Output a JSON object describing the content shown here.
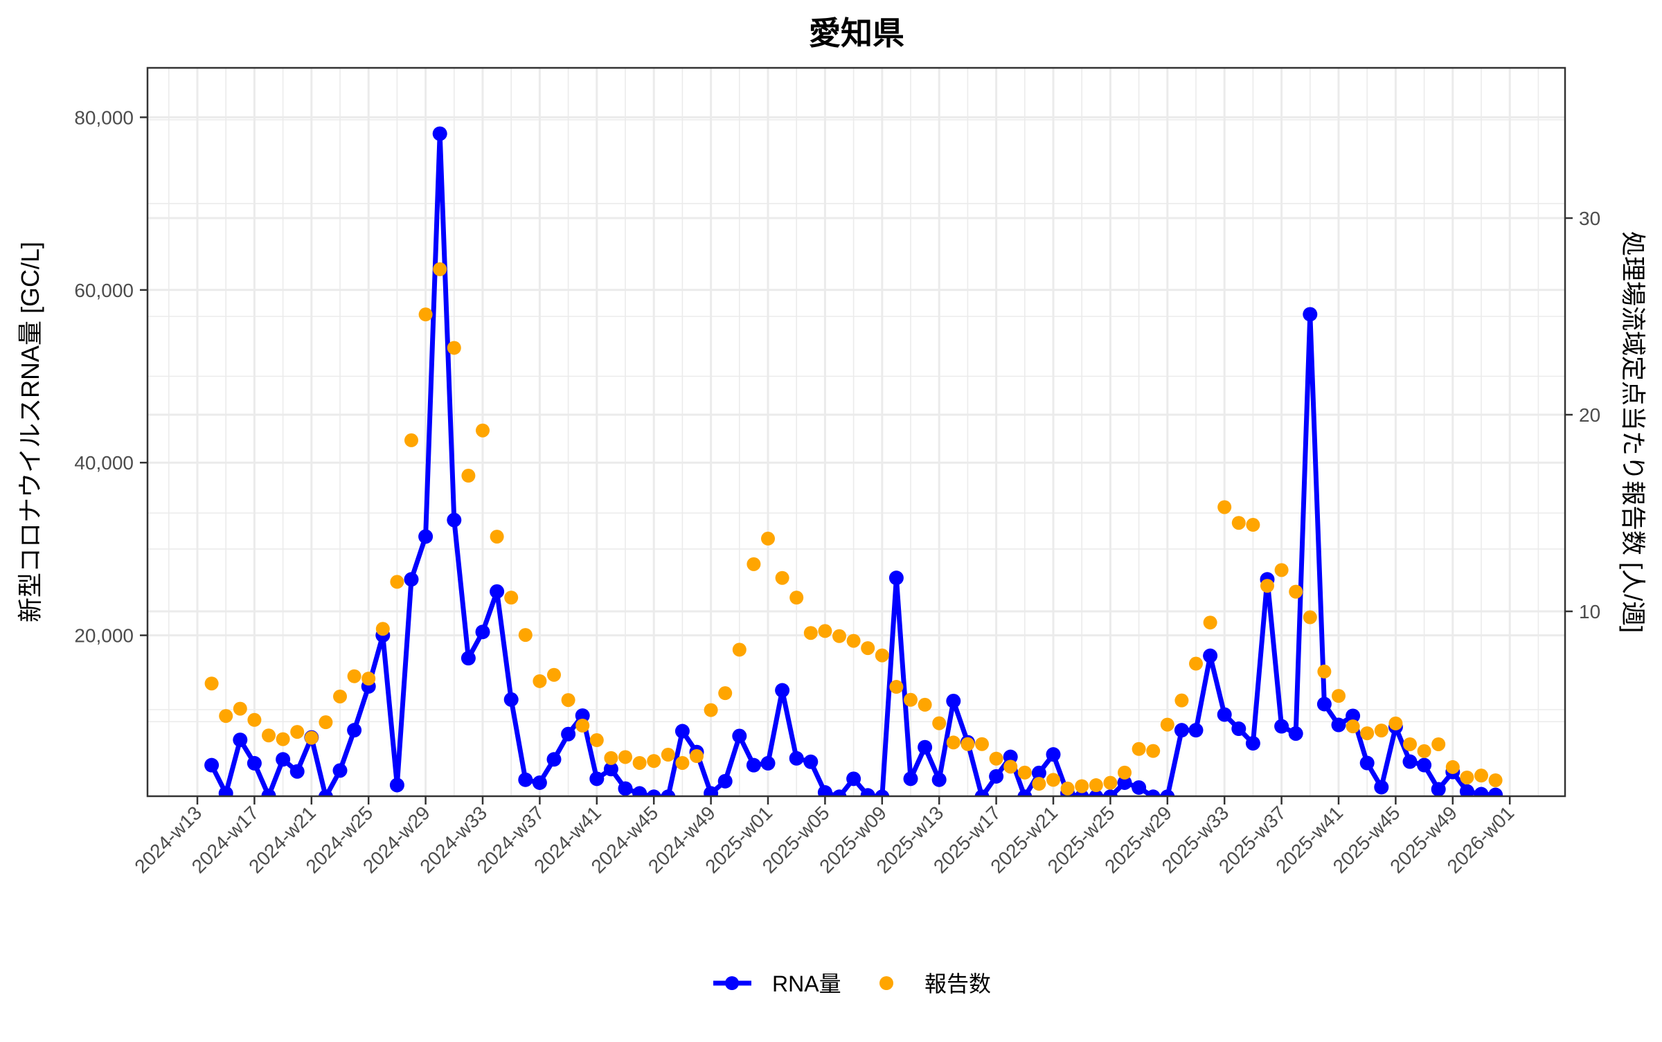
{
  "chart_data": {
    "type": "line",
    "title": "愛知県",
    "xlabel": "",
    "ylabel": "新型コロナウイルスRNA量 [GC/L]",
    "y2label": "処理場流域定点当たり報告数 [人/週]",
    "x_tick_labels": [
      "2024-w13",
      "2024-w17",
      "2024-w21",
      "2024-w25",
      "2024-w29",
      "2024-w33",
      "2024-w37",
      "2024-w41",
      "2024-w45",
      "2024-w49",
      "2025-w01",
      "2025-w05",
      "2025-w09",
      "2025-w13",
      "2025-w17",
      "2025-w21",
      "2025-w25",
      "2025-w29",
      "2025-w33",
      "2025-w37",
      "2025-w41",
      "2025-w45",
      "2025-w49",
      "2026-w01"
    ],
    "y_tick_labels": [
      "20,000",
      "40,000",
      "60,000",
      "80,000"
    ],
    "y_ticks": [
      20000,
      40000,
      60000,
      80000
    ],
    "y2_tick_labels": [
      "10",
      "20",
      "30"
    ],
    "y2_ticks": [
      10,
      20,
      30
    ],
    "ylim": [
      1360,
      85800
    ],
    "y2lim": [
      0.6,
      37.7
    ],
    "grid": true,
    "legend_position": "bottom",
    "legend": [
      {
        "name": "RNA量",
        "style": "line+point",
        "color": "#0000FF"
      },
      {
        "name": "報告数",
        "style": "point",
        "color": "#FFA500"
      }
    ],
    "x": [
      "2024-w13",
      "2024-w14",
      "2024-w15",
      "2024-w16",
      "2024-w17",
      "2024-w18",
      "2024-w19",
      "2024-w20",
      "2024-w21",
      "2024-w22",
      "2024-w23",
      "2024-w24",
      "2024-w25",
      "2024-w26",
      "2024-w27",
      "2024-w28",
      "2024-w29",
      "2024-w30",
      "2024-w31",
      "2024-w32",
      "2024-w33",
      "2024-w34",
      "2024-w35",
      "2024-w36",
      "2024-w37",
      "2024-w38",
      "2024-w39",
      "2024-w40",
      "2024-w41",
      "2024-w42",
      "2024-w43",
      "2024-w44",
      "2024-w45",
      "2024-w46",
      "2024-w47",
      "2024-w48",
      "2024-w49",
      "2024-w50",
      "2024-w51",
      "2024-w52",
      "2025-w01",
      "2025-w02",
      "2025-w03",
      "2025-w04",
      "2025-w05",
      "2025-w06",
      "2025-w07",
      "2025-w08",
      "2025-w09",
      "2025-w10",
      "2025-w11",
      "2025-w12",
      "2025-w13",
      "2025-w14",
      "2025-w15",
      "2025-w16",
      "2025-w17",
      "2025-w18",
      "2025-w19",
      "2025-w20",
      "2025-w21",
      "2025-w22",
      "2025-w23",
      "2025-w24",
      "2025-w25",
      "2025-w26",
      "2025-w27",
      "2025-w28",
      "2025-w29",
      "2025-w30",
      "2025-w31",
      "2025-w32",
      "2025-w33",
      "2025-w34",
      "2025-w35",
      "2025-w36",
      "2025-w37",
      "2025-w38",
      "2025-w39",
      "2025-w40",
      "2025-w41",
      "2025-w42",
      "2025-w43",
      "2025-w44",
      "2025-w45",
      "2025-w46",
      "2025-w47",
      "2025-w48",
      "2025-w49",
      "2025-w50",
      "2025-w51",
      "2025-w52",
      "2026-w01"
    ],
    "series": [
      {
        "name": "RNA量",
        "axis": "left",
        "color": "#0000FF",
        "values": [
          null,
          4960,
          1690,
          7890,
          5180,
          1400,
          5630,
          4230,
          8170,
          1300,
          4340,
          9010,
          14080,
          20000,
          2650,
          26480,
          31440,
          78100,
          33350,
          17350,
          20390,
          25070,
          12560,
          3270,
          2930,
          5630,
          8560,
          10700,
          3380,
          4510,
          2250,
          1690,
          1300,
          1300,
          8900,
          6480,
          1690,
          3100,
          8340,
          4960,
          5180,
          13630,
          5750,
          5350,
          1800,
          1300,
          3380,
          1460,
          1300,
          26650,
          3380,
          7040,
          3270,
          12390,
          7610,
          1300,
          3660,
          5920,
          1300,
          4060,
          6200,
          1690,
          1300,
          1300,
          1300,
          2930,
          2370,
          1300,
          1300,
          9010,
          9010,
          17630,
          10820,
          9180,
          7490,
          26480,
          9460,
          8620,
          57180,
          12030,
          9620,
          10670,
          5210,
          2410,
          9380,
          5370,
          4970,
          2170,
          4170,
          1920,
          1600,
          1520,
          null
        ]
      },
      {
        "name": "報告数",
        "axis": "right",
        "color": "#FFA500",
        "values": [
          null,
          6.33,
          4.68,
          5.05,
          4.48,
          3.69,
          3.5,
          3.87,
          3.57,
          4.36,
          5.67,
          6.7,
          6.58,
          9.11,
          11.5,
          18.7,
          25.1,
          27.4,
          23.4,
          16.9,
          19.2,
          13.8,
          10.7,
          8.8,
          6.45,
          6.77,
          5.49,
          4.19,
          3.45,
          2.54,
          2.59,
          2.29,
          2.39,
          2.71,
          2.29,
          2.64,
          4.98,
          5.84,
          8.05,
          12.4,
          13.7,
          11.7,
          10.7,
          8.9,
          9.0,
          8.74,
          8.5,
          8.13,
          7.76,
          6.16,
          5.5,
          5.25,
          4.31,
          3.33,
          3.25,
          3.25,
          2.51,
          2.1,
          1.8,
          1.23,
          1.43,
          0.99,
          1.11,
          1.16,
          1.28,
          1.8,
          3.0,
          2.9,
          4.24,
          5.47,
          7.34,
          9.43,
          15.3,
          14.5,
          14.4,
          11.3,
          12.1,
          11.0,
          9.7,
          6.94,
          5.7,
          4.15,
          3.8,
          3.94,
          4.3,
          3.24,
          2.89,
          3.24,
          2.08,
          1.55,
          1.65,
          1.41,
          null
        ]
      }
    ]
  },
  "legend": {
    "rna_label": "RNA量",
    "report_label": "報告数"
  }
}
